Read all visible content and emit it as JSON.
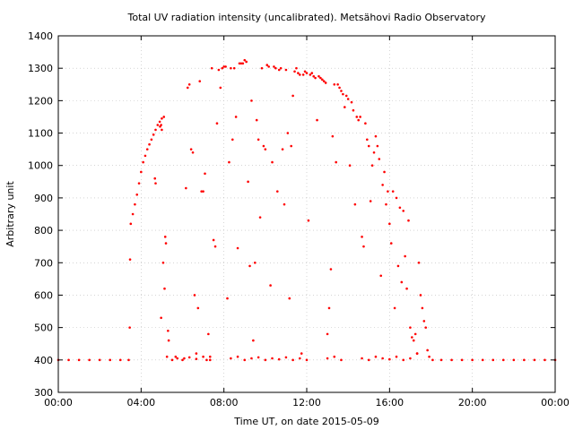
{
  "chart_data": {
    "type": "scatter",
    "title": "Total UV radiation intensity (uncalibrated). Metsähovi Radio Observatory",
    "xlabel": "Time UT, on date 2015-05-09",
    "ylabel": "Arbitrary unit",
    "xlim": [
      "00:00",
      "24:00"
    ],
    "ylim": [
      300,
      1400
    ],
    "x_tick_labels": [
      "00:00",
      "04:00",
      "08:00",
      "12:00",
      "16:00",
      "20:00",
      "00:00"
    ],
    "y_tick_labels": [
      "300",
      "400",
      "500",
      "600",
      "700",
      "800",
      "900",
      "1000",
      "1100",
      "1200",
      "1300",
      "1400"
    ],
    "grid": true,
    "marker_color": "#ff0000",
    "series": [
      {
        "points": [
          [
            "00:00",
            400
          ],
          [
            "00:30",
            400
          ],
          [
            "01:00",
            400
          ],
          [
            "01:30",
            400
          ],
          [
            "02:00",
            400
          ],
          [
            "02:30",
            400
          ],
          [
            "03:00",
            400
          ],
          [
            "03:24",
            400
          ],
          [
            "03:27",
            500
          ],
          [
            "03:28",
            710
          ],
          [
            "03:30",
            820
          ],
          [
            "03:36",
            850
          ],
          [
            "03:42",
            880
          ],
          [
            "03:48",
            910
          ],
          [
            "03:54",
            945
          ],
          [
            "04:00",
            980
          ],
          [
            "04:06",
            1010
          ],
          [
            "04:12",
            1030
          ],
          [
            "04:18",
            1050
          ],
          [
            "04:24",
            1065
          ],
          [
            "04:30",
            1080
          ],
          [
            "04:36",
            1095
          ],
          [
            "04:42",
            1110
          ],
          [
            "04:48",
            1125
          ],
          [
            "04:54",
            1135
          ],
          [
            "05:00",
            1145
          ],
          [
            "05:06",
            1150
          ],
          [
            "04:40",
            960
          ],
          [
            "04:42",
            945
          ],
          [
            "04:55",
            1120
          ],
          [
            "04:58",
            1125
          ],
          [
            "05:00",
            1110
          ],
          [
            "05:04",
            700
          ],
          [
            "05:08",
            620
          ],
          [
            "05:10",
            780
          ],
          [
            "05:12",
            760
          ],
          [
            "04:58",
            530
          ],
          [
            "05:15",
            410
          ],
          [
            "05:18",
            490
          ],
          [
            "05:20",
            460
          ],
          [
            "05:30",
            400
          ],
          [
            "05:45",
            405
          ],
          [
            "06:00",
            400
          ],
          [
            "06:10",
            930
          ],
          [
            "06:15",
            1240
          ],
          [
            "06:20",
            1250
          ],
          [
            "06:25",
            1050
          ],
          [
            "06:30",
            1040
          ],
          [
            "06:35",
            600
          ],
          [
            "06:40",
            420
          ],
          [
            "06:45",
            560
          ],
          [
            "06:50",
            1260
          ],
          [
            "06:55",
            920
          ],
          [
            "07:00",
            920
          ],
          [
            "07:05",
            975
          ],
          [
            "07:10",
            400
          ],
          [
            "07:15",
            480
          ],
          [
            "07:20",
            410
          ],
          [
            "07:25",
            1300
          ],
          [
            "07:30",
            770
          ],
          [
            "07:35",
            750
          ],
          [
            "07:40",
            1130
          ],
          [
            "07:45",
            1295
          ],
          [
            "07:50",
            1240
          ],
          [
            "07:55",
            1300
          ],
          [
            "08:00",
            1305
          ],
          [
            "08:05",
            1305
          ],
          [
            "08:10",
            590
          ],
          [
            "08:15",
            1010
          ],
          [
            "08:20",
            1300
          ],
          [
            "08:25",
            1080
          ],
          [
            "08:30",
            1300
          ],
          [
            "08:35",
            1150
          ],
          [
            "08:40",
            745
          ],
          [
            "08:45",
            1315
          ],
          [
            "08:50",
            1315
          ],
          [
            "08:55",
            1315
          ],
          [
            "09:00",
            1325
          ],
          [
            "09:05",
            1320
          ],
          [
            "09:10",
            950
          ],
          [
            "09:15",
            690
          ],
          [
            "09:20",
            1200
          ],
          [
            "09:25",
            460
          ],
          [
            "09:30",
            700
          ],
          [
            "09:35",
            1140
          ],
          [
            "09:40",
            1080
          ],
          [
            "09:45",
            840
          ],
          [
            "09:50",
            1300
          ],
          [
            "09:55",
            1060
          ],
          [
            "10:00",
            1050
          ],
          [
            "10:05",
            1310
          ],
          [
            "10:10",
            1305
          ],
          [
            "10:15",
            630
          ],
          [
            "10:20",
            1010
          ],
          [
            "10:25",
            1305
          ],
          [
            "10:30",
            1300
          ],
          [
            "10:35",
            920
          ],
          [
            "10:40",
            1295
          ],
          [
            "10:45",
            1300
          ],
          [
            "10:50",
            1050
          ],
          [
            "10:55",
            880
          ],
          [
            "11:00",
            1295
          ],
          [
            "11:05",
            1100
          ],
          [
            "11:10",
            590
          ],
          [
            "11:15",
            1060
          ],
          [
            "11:20",
            1215
          ],
          [
            "11:25",
            1290
          ],
          [
            "11:30",
            1300
          ],
          [
            "11:35",
            1285
          ],
          [
            "11:40",
            1280
          ],
          [
            "11:45",
            420
          ],
          [
            "11:50",
            1280
          ],
          [
            "11:55",
            1290
          ],
          [
            "12:00",
            1285
          ],
          [
            "12:05",
            830
          ],
          [
            "12:10",
            1280
          ],
          [
            "12:15",
            1285
          ],
          [
            "12:20",
            1275
          ],
          [
            "12:25",
            1270
          ],
          [
            "12:30",
            1140
          ],
          [
            "12:35",
            1275
          ],
          [
            "12:40",
            1270
          ],
          [
            "12:45",
            1265
          ],
          [
            "12:50",
            1260
          ],
          [
            "12:55",
            1255
          ],
          [
            "13:00",
            480
          ],
          [
            "13:05",
            560
          ],
          [
            "13:10",
            680
          ],
          [
            "13:15",
            1090
          ],
          [
            "13:20",
            1250
          ],
          [
            "13:25",
            1010
          ],
          [
            "13:30",
            1250
          ],
          [
            "13:35",
            1240
          ],
          [
            "13:40",
            1230
          ],
          [
            "13:45",
            1220
          ],
          [
            "13:50",
            1180
          ],
          [
            "13:55",
            1215
          ],
          [
            "14:00",
            1205
          ],
          [
            "14:05",
            1000
          ],
          [
            "14:10",
            1195
          ],
          [
            "14:15",
            1170
          ],
          [
            "14:20",
            880
          ],
          [
            "14:25",
            1150
          ],
          [
            "14:30",
            1140
          ],
          [
            "14:35",
            1150
          ],
          [
            "14:40",
            780
          ],
          [
            "14:45",
            750
          ],
          [
            "14:50",
            1130
          ],
          [
            "14:55",
            1080
          ],
          [
            "15:00",
            1060
          ],
          [
            "15:05",
            890
          ],
          [
            "15:10",
            1000
          ],
          [
            "15:15",
            1040
          ],
          [
            "15:20",
            1090
          ],
          [
            "15:25",
            1060
          ],
          [
            "15:30",
            1020
          ],
          [
            "15:35",
            660
          ],
          [
            "15:40",
            940
          ],
          [
            "15:45",
            980
          ],
          [
            "15:50",
            880
          ],
          [
            "15:55",
            920
          ],
          [
            "16:00",
            820
          ],
          [
            "16:05",
            760
          ],
          [
            "16:10",
            920
          ],
          [
            "16:15",
            560
          ],
          [
            "16:20",
            900
          ],
          [
            "16:25",
            690
          ],
          [
            "16:30",
            870
          ],
          [
            "16:35",
            640
          ],
          [
            "16:40",
            860
          ],
          [
            "16:45",
            720
          ],
          [
            "16:50",
            620
          ],
          [
            "16:55",
            830
          ],
          [
            "17:00",
            500
          ],
          [
            "17:05",
            470
          ],
          [
            "17:10",
            460
          ],
          [
            "17:15",
            480
          ],
          [
            "17:20",
            420
          ],
          [
            "17:25",
            700
          ],
          [
            "17:30",
            600
          ],
          [
            "17:35",
            560
          ],
          [
            "17:40",
            520
          ],
          [
            "17:45",
            500
          ],
          [
            "17:50",
            430
          ],
          [
            "17:55",
            410
          ],
          [
            "05:40",
            410
          ],
          [
            "06:05",
            405
          ],
          [
            "06:20",
            408
          ],
          [
            "06:40",
            403
          ],
          [
            "07:00",
            410
          ],
          [
            "07:20",
            400
          ],
          [
            "08:20",
            405
          ],
          [
            "08:40",
            410
          ],
          [
            "09:00",
            400
          ],
          [
            "09:20",
            405
          ],
          [
            "09:40",
            408
          ],
          [
            "10:00",
            400
          ],
          [
            "10:20",
            405
          ],
          [
            "10:40",
            402
          ],
          [
            "11:00",
            408
          ],
          [
            "11:20",
            400
          ],
          [
            "11:40",
            405
          ],
          [
            "12:00",
            400
          ],
          [
            "13:00",
            405
          ],
          [
            "13:20",
            410
          ],
          [
            "13:40",
            400
          ],
          [
            "14:40",
            405
          ],
          [
            "15:00",
            400
          ],
          [
            "15:20",
            410
          ],
          [
            "15:40",
            405
          ],
          [
            "16:00",
            402
          ],
          [
            "16:20",
            410
          ],
          [
            "16:40",
            400
          ],
          [
            "17:00",
            405
          ],
          [
            "17:20",
            420
          ],
          [
            "18:05",
            400
          ],
          [
            "18:30",
            400
          ],
          [
            "19:00",
            400
          ],
          [
            "19:30",
            400
          ],
          [
            "20:00",
            400
          ],
          [
            "20:30",
            400
          ],
          [
            "21:00",
            400
          ],
          [
            "21:30",
            400
          ],
          [
            "22:00",
            400
          ],
          [
            "22:30",
            400
          ],
          [
            "23:00",
            400
          ],
          [
            "23:30",
            400
          ],
          [
            "24:00",
            400
          ]
        ]
      }
    ]
  }
}
